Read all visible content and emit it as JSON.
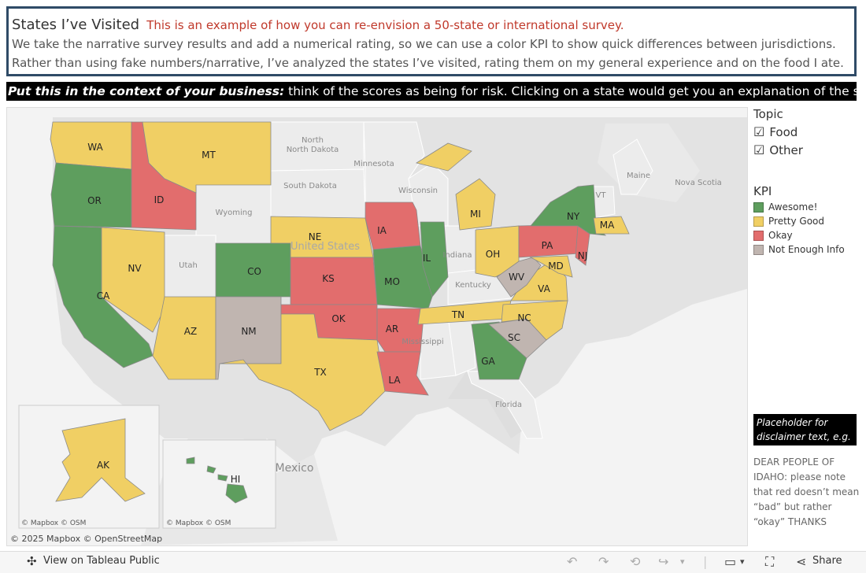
{
  "header": {
    "title": "States I’ve Visited",
    "subtitle": "This is an example of how you can re-envision a 50-state or international survey.",
    "line1": "We take the narrative survey results and add a numerical rating, so we can use a color KPI to show quick differences between jurisdictions.",
    "line2": "Rather than using fake numbers/narrative, I’ve analyzed the states I’ve visited, rating them on my general experience and on the food I ate."
  },
  "banner": {
    "bold": "Put this in the context of your business:",
    "rest": " think of the scores as being for risk. Clicking on a state would get you an explanation of the score."
  },
  "colors": {
    "awesome": "#5e9e5e",
    "pretty_good": "#f0cf64",
    "okay": "#e26d6d",
    "not_enough": "#c0b5b0",
    "border": "#2f4b67"
  },
  "topic": {
    "title": "Topic",
    "items": [
      {
        "label": "Food",
        "checked": true
      },
      {
        "label": "Other",
        "checked": true
      }
    ]
  },
  "kpi": {
    "title": "KPI",
    "items": [
      {
        "label": "Awesome!",
        "key": "awesome"
      },
      {
        "label": "Pretty Good",
        "key": "pretty_good"
      },
      {
        "label": "Okay",
        "key": "okay"
      },
      {
        "label": "Not Enough Info",
        "key": "not_enough"
      }
    ]
  },
  "states": {
    "WA": {
      "label": "WA",
      "kpi": "pretty_good"
    },
    "OR": {
      "label": "OR",
      "kpi": "awesome"
    },
    "CA": {
      "label": "CA",
      "kpi": "awesome"
    },
    "ID": {
      "label": "ID",
      "kpi": "okay"
    },
    "MT": {
      "label": "MT",
      "kpi": "pretty_good"
    },
    "NV": {
      "label": "NV",
      "kpi": "pretty_good"
    },
    "AZ": {
      "label": "AZ",
      "kpi": "pretty_good"
    },
    "CO": {
      "label": "CO",
      "kpi": "awesome"
    },
    "NM": {
      "label": "NM",
      "kpi": "not_enough"
    },
    "NE": {
      "label": "NE",
      "kpi": "pretty_good"
    },
    "KS": {
      "label": "KS",
      "kpi": "okay"
    },
    "OK": {
      "label": "OK",
      "kpi": "okay"
    },
    "TX": {
      "label": "TX",
      "kpi": "pretty_good"
    },
    "IA": {
      "label": "IA",
      "kpi": "okay"
    },
    "MO": {
      "label": "MO",
      "kpi": "awesome"
    },
    "AR": {
      "label": "AR",
      "kpi": "okay"
    },
    "LA": {
      "label": "LA",
      "kpi": "okay"
    },
    "IL": {
      "label": "IL",
      "kpi": "awesome"
    },
    "MI": {
      "label": "MI",
      "kpi": "pretty_good"
    },
    "OH": {
      "label": "OH",
      "kpi": "pretty_good"
    },
    "TN": {
      "label": "TN",
      "kpi": "pretty_good"
    },
    "GA": {
      "label": "GA",
      "kpi": "awesome"
    },
    "SC": {
      "label": "SC",
      "kpi": "not_enough"
    },
    "NC": {
      "label": "NC",
      "kpi": "pretty_good"
    },
    "VA": {
      "label": "VA",
      "kpi": "pretty_good"
    },
    "WV": {
      "label": "WV",
      "kpi": "not_enough"
    },
    "MD": {
      "label": "MD",
      "kpi": "pretty_good"
    },
    "PA": {
      "label": "PA",
      "kpi": "okay"
    },
    "NJ": {
      "label": "NJ",
      "kpi": "okay"
    },
    "NY": {
      "label": "NY",
      "kpi": "awesome"
    },
    "MA": {
      "label": "MA",
      "kpi": "pretty_good"
    },
    "AK": {
      "label": "AK",
      "kpi": "pretty_good"
    },
    "HI": {
      "label": "HI",
      "kpi": "awesome"
    }
  },
  "basemap_labels": {
    "north_dakota": "North Dakota",
    "south_dakota": "South Dakota",
    "minnesota": "Minnesota",
    "wisconsin": "Wisconsin",
    "wyoming": "Wyoming",
    "utah": "Utah",
    "indiana": "Indiana",
    "kentucky": "Kentucky",
    "mississippi": "Mississippi",
    "florida": "Florida",
    "maine": "Maine",
    "nova_scotia": "Nova Scotia",
    "vt": "VT",
    "mexico": "Mexico",
    "united_states": "United States"
  },
  "attribution": {
    "main": "© 2025 Mapbox  © OpenStreetMap",
    "inset": "© Mapbox  © OSM"
  },
  "disclaimer": {
    "box": "Placeholder for disclaimer text, e.g.",
    "text": "DEAR PEOPLE OF IDAHO: please note that red doesn’t mean “bad” but rather “okay” THANKS"
  },
  "toolbar": {
    "view_label": "View on Tableau Public",
    "share_label": "Share"
  }
}
